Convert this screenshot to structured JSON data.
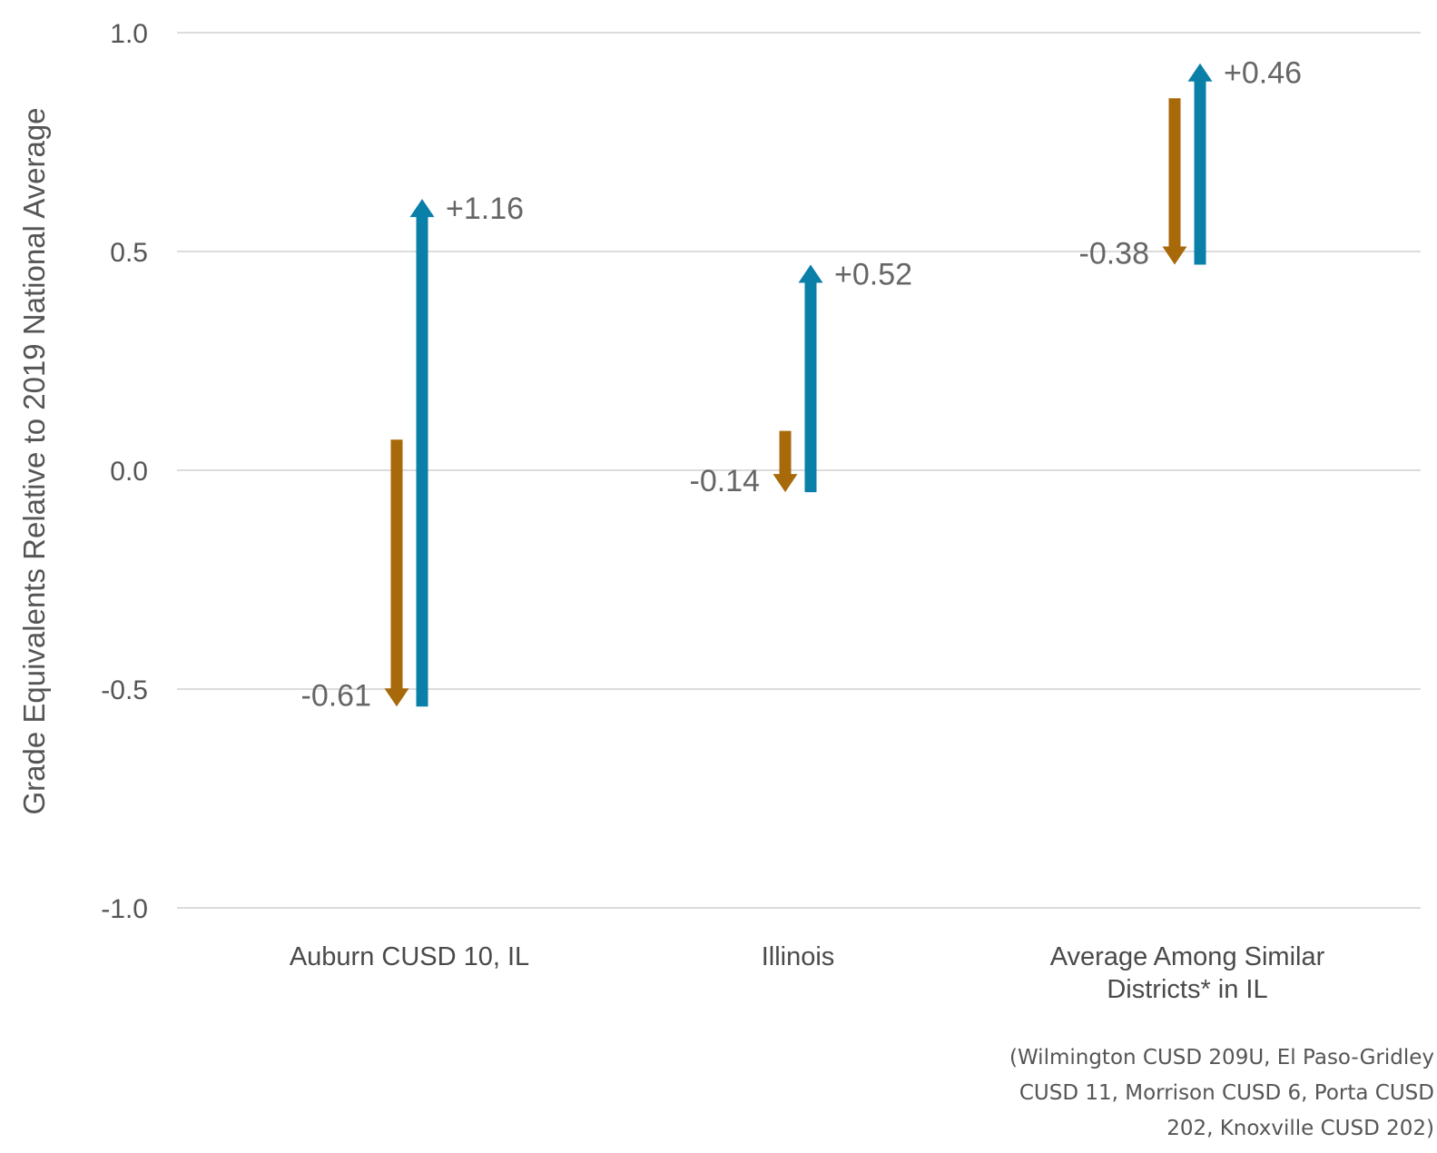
{
  "chart_data": {
    "type": "bar",
    "title": "",
    "xlabel": "",
    "ylabel": "Grade Equivalents Relative to 2019 National Average",
    "ylim": [
      -1.0,
      1.0
    ],
    "yticks": [
      "1.0",
      "0.5",
      "0.0",
      "-0.5",
      "-1.0"
    ],
    "ytick_values": [
      1.0,
      0.5,
      0.0,
      -0.5,
      -1.0
    ],
    "grid": true,
    "categories": [
      {
        "line1": "Auburn CUSD 10, IL",
        "line2": ""
      },
      {
        "line1": "Illinois",
        "line2": ""
      },
      {
        "line1": "Average Among Similar",
        "line2": "Districts* in IL"
      }
    ],
    "series": [
      {
        "color": "#a8690a",
        "direction": "down",
        "start": [
          0.07,
          0.09,
          0.85
        ],
        "end": [
          -0.54,
          -0.05,
          0.47
        ],
        "labels": [
          "-0.61",
          "-0.14",
          "-0.38"
        ]
      },
      {
        "color": "#0a7fa8",
        "direction": "up",
        "start": [
          -0.54,
          -0.05,
          0.47
        ],
        "end": [
          0.62,
          0.47,
          0.93
        ],
        "labels": [
          "+1.16",
          "+0.52",
          "+0.46"
        ]
      }
    ]
  },
  "footnote": {
    "line1": "(Wilmington CUSD 209U, El Paso-Gridley",
    "line2": "CUSD 11, Morrison CUSD 6, Porta CUSD",
    "line3": "202, Knoxville CUSD 202)"
  }
}
